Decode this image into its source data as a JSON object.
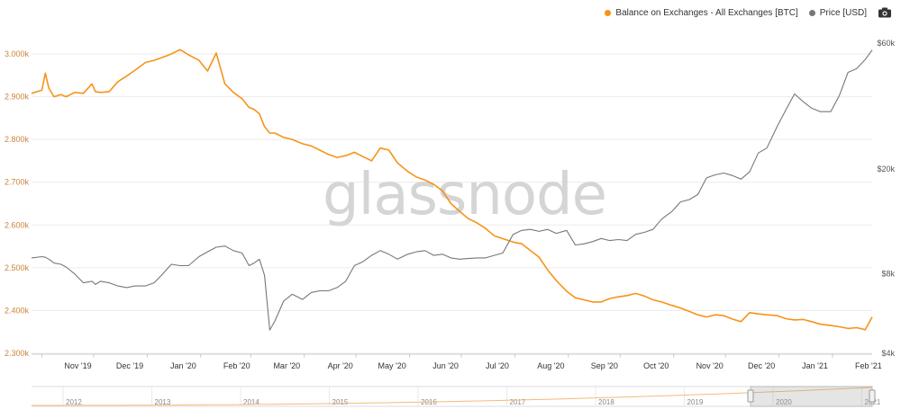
{
  "legend": {
    "items": [
      {
        "label": "Balance on Exchanges - All Exchanges [BTC]",
        "color": "#f7931a"
      },
      {
        "label": "Price [USD]",
        "color": "#777777"
      }
    ],
    "camera_icon": "camera-icon"
  },
  "watermark": "glassnode",
  "chart_data": {
    "type": "line",
    "x": [
      "2019-10-26",
      "2019-11-01",
      "2019-11-03",
      "2019-11-05",
      "2019-11-08",
      "2019-11-12",
      "2019-11-15",
      "2019-11-20",
      "2019-11-25",
      "2019-11-30",
      "2019-12-02",
      "2019-12-05",
      "2019-12-10",
      "2019-12-15",
      "2019-12-20",
      "2019-12-25",
      "2019-12-31",
      "2020-01-05",
      "2020-01-10",
      "2020-01-15",
      "2020-01-20",
      "2020-01-25",
      "2020-01-31",
      "2020-02-05",
      "2020-02-10",
      "2020-02-15",
      "2020-02-20",
      "2020-02-25",
      "2020-02-29",
      "2020-03-03",
      "2020-03-06",
      "2020-03-09",
      "2020-03-12",
      "2020-03-15",
      "2020-03-20",
      "2020-03-25",
      "2020-03-31",
      "2020-04-05",
      "2020-04-10",
      "2020-04-15",
      "2020-04-20",
      "2020-04-25",
      "2020-04-30",
      "2020-05-05",
      "2020-05-10",
      "2020-05-15",
      "2020-05-20",
      "2020-05-25",
      "2020-05-31",
      "2020-06-05",
      "2020-06-10",
      "2020-06-15",
      "2020-06-20",
      "2020-06-25",
      "2020-06-30",
      "2020-07-05",
      "2020-07-10",
      "2020-07-15",
      "2020-07-20",
      "2020-07-25",
      "2020-07-31",
      "2020-08-05",
      "2020-08-10",
      "2020-08-15",
      "2020-08-20",
      "2020-08-25",
      "2020-08-31",
      "2020-09-05",
      "2020-09-10",
      "2020-09-15",
      "2020-09-20",
      "2020-09-25",
      "2020-09-30",
      "2020-10-05",
      "2020-10-10",
      "2020-10-15",
      "2020-10-20",
      "2020-10-25",
      "2020-10-31",
      "2020-11-05",
      "2020-11-10",
      "2020-11-15",
      "2020-11-20",
      "2020-11-25",
      "2020-11-30",
      "2020-12-05",
      "2020-12-10",
      "2020-12-15",
      "2020-12-20",
      "2020-12-25",
      "2020-12-31",
      "2021-01-05",
      "2021-01-10",
      "2021-01-15",
      "2021-01-20",
      "2021-01-25",
      "2021-01-31",
      "2021-02-05",
      "2021-02-10",
      "2021-02-15",
      "2021-02-20",
      "2021-02-24"
    ],
    "series": [
      {
        "name": "Balance on Exchanges - All Exchanges [BTC]",
        "axis": "left",
        "color": "#f7931a",
        "values": [
          2908000,
          2915000,
          2955000,
          2920000,
          2900000,
          2905000,
          2900000,
          2910000,
          2908000,
          2930000,
          2912000,
          2910000,
          2912000,
          2935000,
          2948000,
          2962000,
          2980000,
          2985000,
          2992000,
          3000000,
          3010000,
          2998000,
          2985000,
          2960000,
          3002000,
          2930000,
          2910000,
          2895000,
          2875000,
          2870000,
          2860000,
          2830000,
          2815000,
          2815000,
          2805000,
          2800000,
          2790000,
          2785000,
          2775000,
          2765000,
          2758000,
          2762000,
          2770000,
          2760000,
          2750000,
          2780000,
          2775000,
          2745000,
          2725000,
          2712000,
          2705000,
          2695000,
          2680000,
          2650000,
          2632000,
          2615000,
          2605000,
          2592000,
          2575000,
          2568000,
          2560000,
          2556000,
          2540000,
          2525000,
          2495000,
          2470000,
          2445000,
          2430000,
          2425000,
          2420000,
          2420000,
          2428000,
          2432000,
          2435000,
          2440000,
          2434000,
          2425000,
          2420000,
          2412000,
          2406000,
          2398000,
          2390000,
          2385000,
          2390000,
          2388000,
          2380000,
          2374000,
          2395000,
          2392000,
          2390000,
          2388000,
          2381000,
          2378000,
          2379000,
          2374000,
          2368000,
          2365000,
          2362000,
          2358000,
          2360000,
          2355000,
          2385000
        ],
        "note_unused": ""
      },
      {
        "name": "Price [USD]",
        "axis": "right",
        "color": "#777777",
        "values": [
          9200,
          9300,
          9250,
          9100,
          8800,
          8700,
          8500,
          8000,
          7400,
          7500,
          7300,
          7500,
          7400,
          7200,
          7100,
          7200,
          7200,
          7400,
          8000,
          8700,
          8600,
          8600,
          9300,
          9700,
          10100,
          10200,
          9800,
          9600,
          8600,
          8800,
          9100,
          7900,
          4900,
          5300,
          6300,
          6700,
          6400,
          6800,
          6900,
          6900,
          7100,
          7500,
          8600,
          8900,
          9400,
          9800,
          9500,
          9100,
          9500,
          9700,
          9800,
          9400,
          9500,
          9200,
          9100,
          9150,
          9200,
          9200,
          9400,
          9600,
          11300,
          11700,
          11800,
          11600,
          11800,
          11400,
          11700,
          10300,
          10400,
          10600,
          10900,
          10700,
          10800,
          10700,
          11300,
          11500,
          11800,
          12900,
          13800,
          15000,
          15300,
          16000,
          18500,
          19000,
          19300,
          18900,
          18300,
          19500,
          23000,
          24000,
          29000,
          33500,
          38500,
          36000,
          34000,
          33000,
          33000,
          38000,
          46500,
          48000,
          52000,
          56500
        ]
      }
    ],
    "left_axis": {
      "ticks": [
        "2.300k",
        "2.400k",
        "2.500k",
        "2.600k",
        "2.700k",
        "2.800k",
        "2.900k",
        "3.000k"
      ],
      "min": 2300000,
      "max": 3000000
    },
    "right_axis": {
      "ticks": [
        "$4k",
        "$8k",
        "$20k",
        "$60k"
      ],
      "scale": "log",
      "min": 4000,
      "max": 60000
    },
    "x_ticks": [
      "Nov '19",
      "Dec '19",
      "Jan '20",
      "Feb '20",
      "Mar '20",
      "Apr '20",
      "May '20",
      "Jun '20",
      "Jul '20",
      "Aug '20",
      "Sep '20",
      "Oct '20",
      "Nov '20",
      "Dec '20",
      "Jan '21",
      "Feb '21"
    ],
    "navigator_ticks": [
      "2012",
      "2013",
      "2014",
      "2015",
      "2016",
      "2017",
      "2018",
      "2019",
      "2020",
      "2021"
    ],
    "grid": true,
    "legend": "top-right"
  }
}
